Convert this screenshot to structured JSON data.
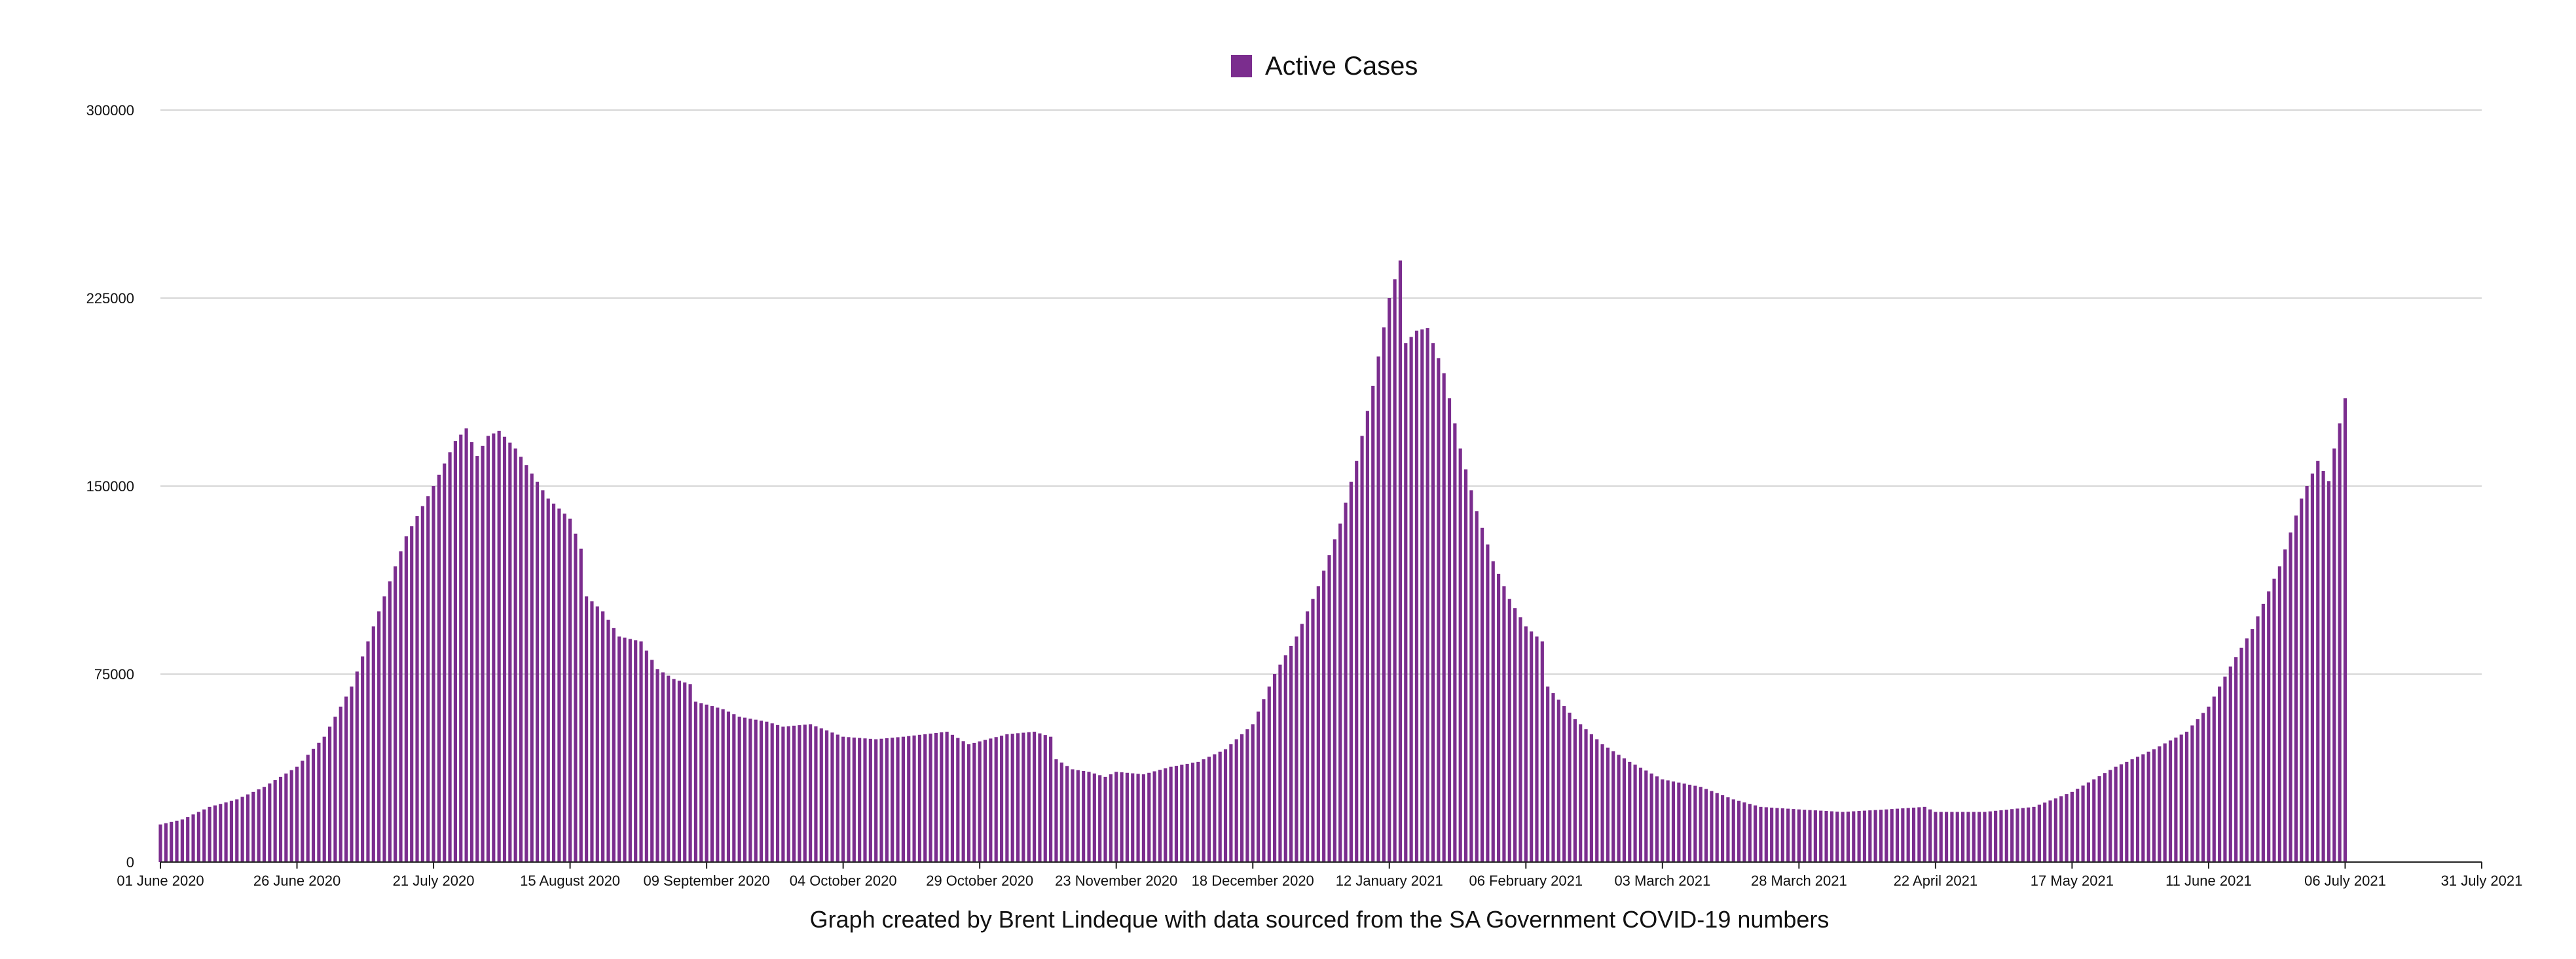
{
  "chart_data": {
    "type": "bar",
    "legend": {
      "label": "Active Cases",
      "position": "top-center"
    },
    "caption": "Graph created by Brent Lindeque with data sourced from the SA Government COVID-19 numbers",
    "x": {
      "type": "date",
      "start": "2020-06-01",
      "end": "2021-07-31",
      "tick_labels": [
        "01 June 2020",
        "26 June 2020",
        "21 July 2020",
        "15 August 2020",
        "09 September 2020",
        "04 October 2020",
        "29 October 2020",
        "23 November 2020",
        "18 December 2020",
        "12 January 2021",
        "06 February 2021",
        "03 March 2021",
        "28 March 2021",
        "22 April 2021",
        "17 May 2021",
        "11 June 2021",
        "06 July 2021",
        "31 July 2021"
      ],
      "tick_dates": [
        "2020-06-01",
        "2020-06-26",
        "2020-07-21",
        "2020-08-15",
        "2020-09-09",
        "2020-10-04",
        "2020-10-29",
        "2020-11-23",
        "2020-12-18",
        "2021-01-12",
        "2021-02-06",
        "2021-03-03",
        "2021-03-28",
        "2021-04-22",
        "2021-05-17",
        "2021-06-11",
        "2021-07-06",
        "2021-07-31"
      ]
    },
    "y": {
      "min": 0,
      "max": 300000,
      "ticks": [
        "0",
        "75000",
        "150000",
        "225000",
        "300000"
      ],
      "tick_values": [
        0,
        75000,
        150000,
        225000,
        300000
      ],
      "grid": true
    },
    "series": [
      {
        "name": "Active Cases",
        "color": "#7b2d8e",
        "anchors": [
          [
            "2020-06-01",
            15000
          ],
          [
            "2020-06-05",
            17000
          ],
          [
            "2020-06-10",
            22000
          ],
          [
            "2020-06-15",
            25000
          ],
          [
            "2020-06-20",
            30000
          ],
          [
            "2020-06-26",
            38000
          ],
          [
            "2020-07-01",
            50000
          ],
          [
            "2020-07-06",
            70000
          ],
          [
            "2020-07-11",
            100000
          ],
          [
            "2020-07-16",
            130000
          ],
          [
            "2020-07-21",
            150000
          ],
          [
            "2020-07-25",
            168000
          ],
          [
            "2020-07-27",
            173000
          ],
          [
            "2020-07-29",
            162000
          ],
          [
            "2020-07-31",
            170000
          ],
          [
            "2020-08-02",
            172000
          ],
          [
            "2020-08-05",
            165000
          ],
          [
            "2020-08-08",
            155000
          ],
          [
            "2020-08-11",
            145000
          ],
          [
            "2020-08-15",
            137000
          ],
          [
            "2020-08-17",
            125000
          ],
          [
            "2020-08-18",
            106000
          ],
          [
            "2020-08-21",
            100000
          ],
          [
            "2020-08-24",
            90000
          ],
          [
            "2020-08-28",
            88000
          ],
          [
            "2020-08-31",
            77000
          ],
          [
            "2020-09-03",
            73000
          ],
          [
            "2020-09-06",
            71000
          ],
          [
            "2020-09-07",
            64000
          ],
          [
            "2020-09-12",
            61000
          ],
          [
            "2020-09-15",
            58000
          ],
          [
            "2020-09-20",
            56000
          ],
          [
            "2020-09-23",
            54000
          ],
          [
            "2020-09-28",
            55000
          ],
          [
            "2020-10-04",
            50000
          ],
          [
            "2020-10-10",
            49000
          ],
          [
            "2020-10-15",
            50000
          ],
          [
            "2020-10-23",
            52000
          ],
          [
            "2020-10-27",
            47000
          ],
          [
            "2020-11-03",
            51000
          ],
          [
            "2020-11-08",
            52000
          ],
          [
            "2020-11-11",
            50000
          ],
          [
            "2020-11-12",
            41000
          ],
          [
            "2020-11-15",
            37000
          ],
          [
            "2020-11-18",
            36000
          ],
          [
            "2020-11-21",
            34000
          ],
          [
            "2020-11-23",
            36000
          ],
          [
            "2020-11-28",
            35000
          ],
          [
            "2020-12-03",
            38000
          ],
          [
            "2020-12-08",
            40000
          ],
          [
            "2020-12-13",
            45000
          ],
          [
            "2020-12-18",
            55000
          ],
          [
            "2020-12-22",
            75000
          ],
          [
            "2020-12-26",
            90000
          ],
          [
            "2020-12-30",
            110000
          ],
          [
            "2021-01-03",
            135000
          ],
          [
            "2021-01-06",
            160000
          ],
          [
            "2021-01-09",
            190000
          ],
          [
            "2021-01-12",
            225000
          ],
          [
            "2021-01-14",
            240000
          ],
          [
            "2021-01-15",
            207000
          ],
          [
            "2021-01-17",
            212000
          ],
          [
            "2021-01-19",
            213000
          ],
          [
            "2021-01-22",
            195000
          ],
          [
            "2021-01-25",
            165000
          ],
          [
            "2021-01-28",
            140000
          ],
          [
            "2021-01-31",
            120000
          ],
          [
            "2021-02-03",
            105000
          ],
          [
            "2021-02-06",
            94000
          ],
          [
            "2021-02-09",
            88000
          ],
          [
            "2021-02-10",
            70000
          ],
          [
            "2021-02-15",
            57000
          ],
          [
            "2021-02-20",
            47000
          ],
          [
            "2021-02-25",
            40000
          ],
          [
            "2021-03-03",
            33000
          ],
          [
            "2021-03-10",
            30000
          ],
          [
            "2021-03-16",
            25000
          ],
          [
            "2021-03-21",
            22000
          ],
          [
            "2021-03-28",
            21000
          ],
          [
            "2021-04-05",
            20000
          ],
          [
            "2021-04-13",
            21000
          ],
          [
            "2021-04-20",
            22000
          ],
          [
            "2021-04-22",
            20000
          ],
          [
            "2021-05-01",
            20000
          ],
          [
            "2021-05-10",
            22000
          ],
          [
            "2021-05-17",
            28000
          ],
          [
            "2021-05-25",
            38000
          ],
          [
            "2021-06-01",
            45000
          ],
          [
            "2021-06-07",
            52000
          ],
          [
            "2021-06-11",
            62000
          ],
          [
            "2021-06-15",
            78000
          ],
          [
            "2021-06-19",
            93000
          ],
          [
            "2021-06-24",
            118000
          ],
          [
            "2021-06-28",
            145000
          ],
          [
            "2021-07-01",
            160000
          ],
          [
            "2021-07-03",
            152000
          ],
          [
            "2021-07-04",
            165000
          ],
          [
            "2021-07-05",
            175000
          ],
          [
            "2021-07-06",
            185000
          ]
        ]
      }
    ]
  }
}
